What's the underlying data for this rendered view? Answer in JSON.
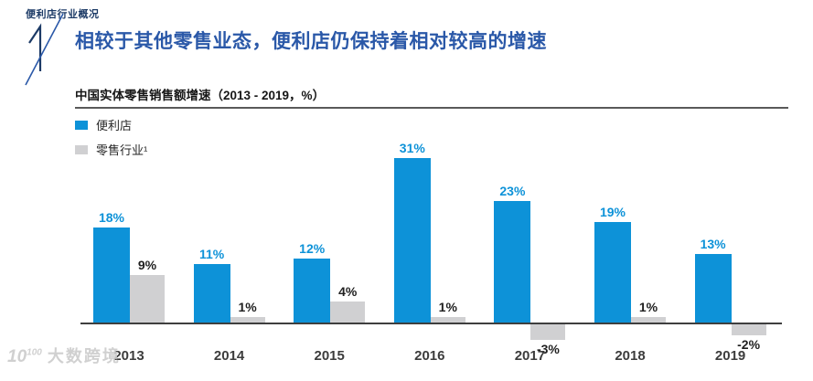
{
  "page": {
    "eyebrow": "便利店行业概况",
    "section_number": "1",
    "title": "相较于其他零售业态，便利店仍保持着相对较高的增速"
  },
  "chart_data": {
    "type": "bar",
    "title": "中国实体零售销售额增速（2013 - 2019，%）",
    "categories": [
      "2013",
      "2014",
      "2015",
      "2016",
      "2017",
      "2018",
      "2019"
    ],
    "series": [
      {
        "name": "便利店",
        "color": "#0d92d8",
        "values": [
          18,
          11,
          12,
          31,
          23,
          19,
          13
        ]
      },
      {
        "name": "零售行业¹",
        "color": "#d0d0d2",
        "values": [
          9,
          1,
          4,
          1,
          -3,
          1,
          -2
        ]
      }
    ],
    "value_suffix": "%",
    "value_label_colors": [
      "#0d92d8",
      "#1f1f1f"
    ],
    "ylim": [
      -5,
      33
    ],
    "grid": false,
    "legend_position": "top-left",
    "axis_color": "#3e3e3e"
  },
  "watermark": {
    "logo_main": "10",
    "logo_sup": "100",
    "text": "大数跨境"
  },
  "colors": {
    "title_blue": "#2a58a8",
    "eyebrow_navy": "#1c3a66"
  }
}
